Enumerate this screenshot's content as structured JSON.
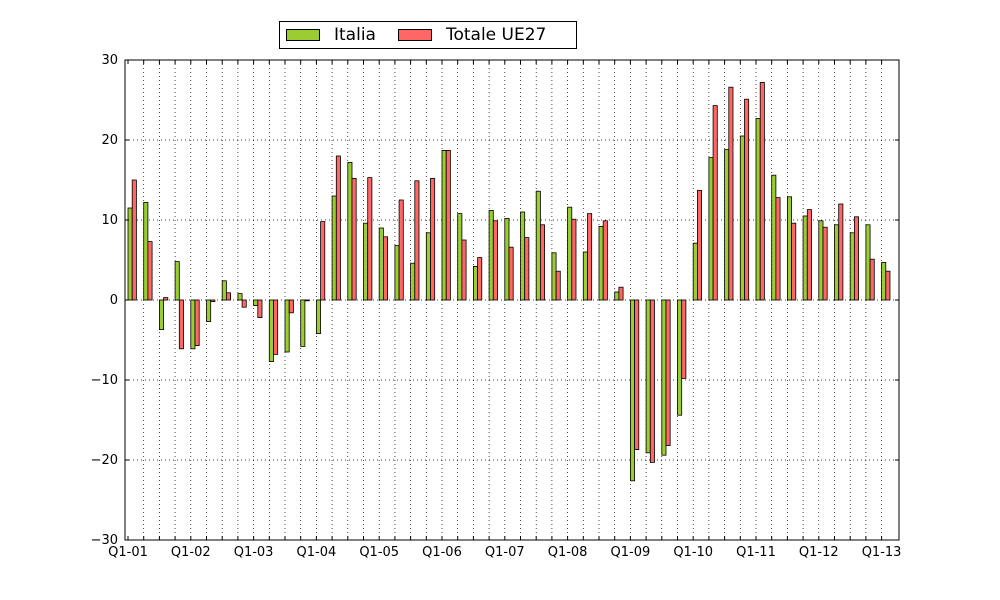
{
  "chart_data": {
    "type": "bar",
    "title": "",
    "xlabel": "",
    "ylabel": "",
    "ylim": [
      -30,
      30
    ],
    "yticks": [
      -30,
      -20,
      -10,
      0,
      10,
      20,
      30
    ],
    "ytick_labels": [
      "−30",
      "−20",
      "−10",
      "0",
      "10",
      "20",
      "30"
    ],
    "grid": true,
    "legend_position": "top-center, above plot",
    "x_tick_labels": [
      "Q1-01",
      "Q1-02",
      "Q1-03",
      "Q1-04",
      "Q1-05",
      "Q1-06",
      "Q1-07",
      "Q1-08",
      "Q1-09",
      "Q1-10",
      "Q1-11",
      "Q1-12",
      "Q1-13"
    ],
    "categories": [
      "Q1-01",
      "Q2-01",
      "Q3-01",
      "Q4-01",
      "Q1-02",
      "Q2-02",
      "Q3-02",
      "Q4-02",
      "Q1-03",
      "Q2-03",
      "Q3-03",
      "Q4-03",
      "Q1-04",
      "Q2-04",
      "Q3-04",
      "Q4-04",
      "Q1-05",
      "Q2-05",
      "Q3-05",
      "Q4-05",
      "Q1-06",
      "Q2-06",
      "Q3-06",
      "Q4-06",
      "Q1-07",
      "Q2-07",
      "Q3-07",
      "Q4-07",
      "Q1-08",
      "Q2-08",
      "Q3-08",
      "Q4-08",
      "Q1-09",
      "Q2-09",
      "Q3-09",
      "Q4-09",
      "Q1-10",
      "Q2-10",
      "Q3-10",
      "Q4-10",
      "Q1-11",
      "Q2-11",
      "Q3-11",
      "Q4-11",
      "Q1-12",
      "Q2-12",
      "Q3-12",
      "Q4-12",
      "Q1-13"
    ],
    "series": [
      {
        "name": "Italia",
        "color": "#9acd32",
        "values": [
          11.5,
          12.2,
          -3.7,
          4.8,
          -6.1,
          -2.7,
          2.4,
          0.8,
          -0.7,
          -7.7,
          -6.5,
          -5.8,
          -4.2,
          13.0,
          17.2,
          9.6,
          9.0,
          6.8,
          4.6,
          8.4,
          18.7,
          10.8,
          4.2,
          11.2,
          10.2,
          11.0,
          13.6,
          5.9,
          11.6,
          6.0,
          9.2,
          1.0,
          -22.6,
          -19.1,
          -19.4,
          -14.4,
          7.1,
          17.8,
          18.8,
          20.5,
          22.7,
          15.6,
          12.9,
          10.5,
          9.9,
          9.4,
          8.4,
          9.4,
          4.7
        ]
      },
      {
        "name": "Totale UE27",
        "color": "#ff6666",
        "values": [
          15.0,
          7.3,
          0.3,
          -6.1,
          -5.7,
          -0.2,
          0.9,
          -0.9,
          -2.2,
          -6.8,
          -1.6,
          -0.1,
          9.8,
          18.0,
          15.2,
          15.3,
          7.9,
          12.5,
          14.9,
          15.2,
          18.7,
          7.5,
          5.3,
          9.9,
          6.6,
          7.8,
          9.4,
          3.6,
          10.1,
          10.8,
          9.9,
          1.6,
          -18.7,
          -20.3,
          -18.2,
          -9.8,
          13.7,
          24.3,
          26.6,
          25.1,
          27.2,
          12.8,
          9.6,
          11.3,
          9.1,
          12.0,
          10.4,
          5.1,
          3.6
        ]
      }
    ]
  }
}
